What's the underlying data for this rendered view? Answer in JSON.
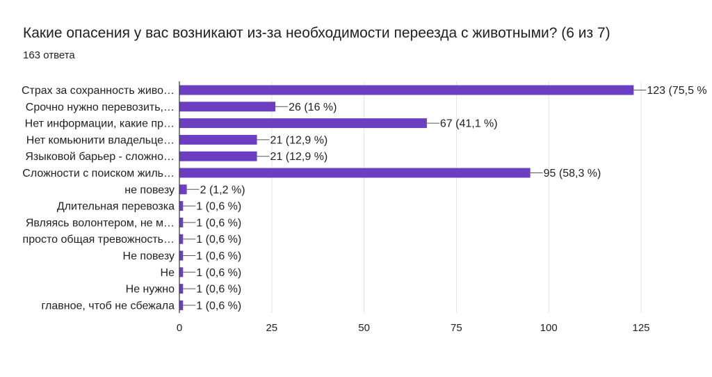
{
  "title": "Какие опасения у вас возникают из-за необходимости переезда с животными? (6 из 7)",
  "subtitle": "163 ответа",
  "colors": {
    "bar": "#6b3fbf",
    "grid": "#e3e3e3",
    "axis": "#333333",
    "text": "#212121"
  },
  "chart_data": {
    "type": "bar",
    "orientation": "horizontal",
    "categories": [
      "Страх за сохранность живо…",
      "Срочно нужно перевозить,…",
      "Нет информации, какие пр…",
      "Нет комьюнити владельце…",
      "Языковой барьер - сложно…",
      "Сложности с поиском жиль…",
      "не повезу",
      "Длительная перевозка",
      "Являясь волонтером, не м…",
      "просто общая тревожность…",
      "Не повезу",
      "Не",
      "Не нужно",
      "главное, чтоб не сбежала"
    ],
    "values": [
      123,
      26,
      67,
      21,
      21,
      95,
      2,
      1,
      1,
      1,
      1,
      1,
      1,
      1
    ],
    "data_labels": [
      "123 (75,5 %",
      "26 (16 %)",
      "67 (41,1 %)",
      "21 (12,9 %)",
      "21 (12,9 %)",
      "95 (58,3 %)",
      "2 (1,2 %)",
      "1 (0,6 %)",
      "1 (0,6 %)",
      "1 (0,6 %)",
      "1 (0,6 %)",
      "1 (0,6 %)",
      "1 (0,6 %)",
      "1 (0,6 %)"
    ],
    "xlim": [
      0,
      125
    ],
    "xticks": [
      "0",
      "25",
      "50",
      "75",
      "100",
      "125"
    ],
    "grid": true,
    "legend": "none"
  }
}
